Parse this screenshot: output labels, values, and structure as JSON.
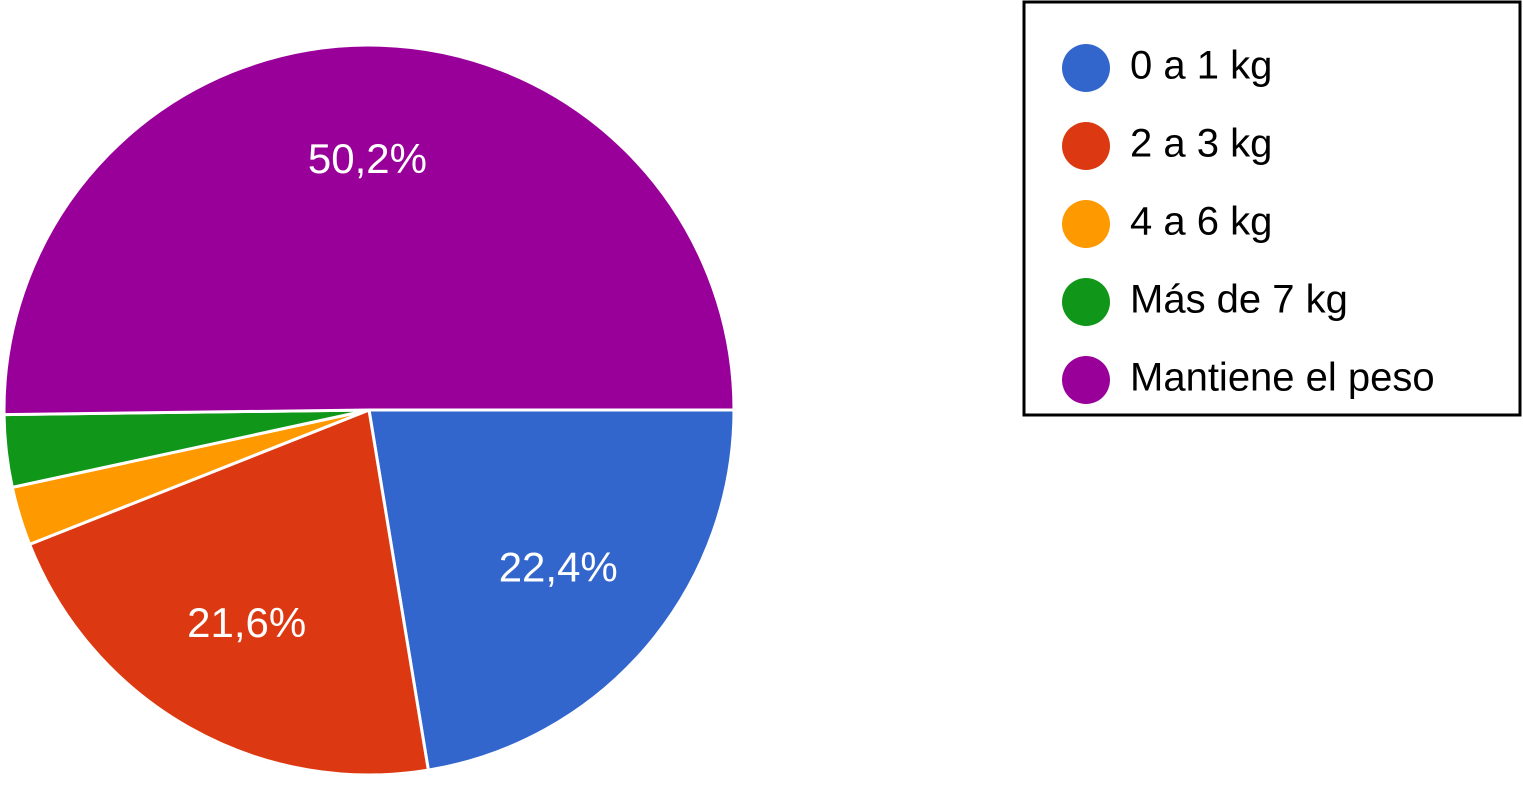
{
  "chart_data": {
    "type": "pie",
    "categories": [
      "0 a 1 kg",
      "2 a 3 kg",
      "4 a 6 kg",
      "Más de 7 kg",
      "Mantiene el peso"
    ],
    "values": [
      22.4,
      21.6,
      2.6,
      3.2,
      50.2
    ],
    "value_labels": [
      "22,4%",
      "21,6%",
      null,
      null,
      "50,2%"
    ],
    "colors": [
      "#3366cc",
      "#dc3912",
      "#ff9900",
      "#109618",
      "#990099"
    ],
    "legend": "right"
  }
}
